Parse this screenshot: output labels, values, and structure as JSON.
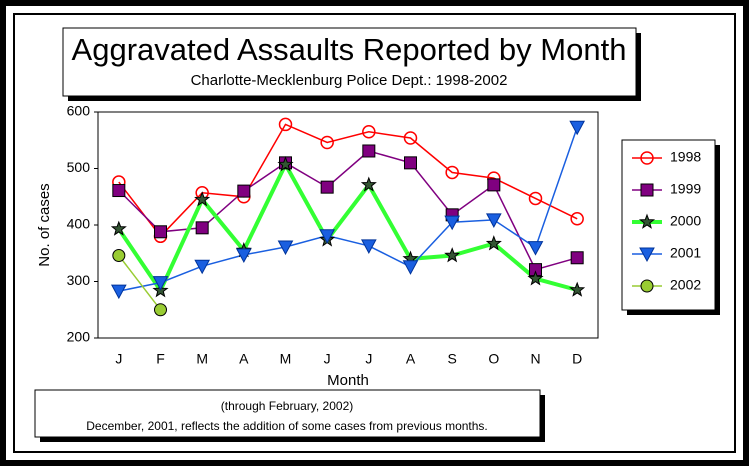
{
  "chart_data": {
    "type": "line",
    "title": "Aggravated Assaults Reported by Month",
    "subtitle": "Charlotte-Mecklenburg Police Dept.: 1998-2002",
    "x_label": "Month",
    "y_label": "No. of cases",
    "categories": [
      "J",
      "F",
      "M",
      "A",
      "M",
      "J",
      "J",
      "A",
      "S",
      "O",
      "N",
      "D"
    ],
    "series": [
      {
        "name": "1998",
        "color": "#ff0000",
        "marker": "circle-open",
        "values": [
          476,
          380,
          457,
          450,
          578,
          546,
          565,
          554,
          493,
          483,
          447,
          411
        ]
      },
      {
        "name": "1999",
        "color": "#800080",
        "marker": "square",
        "values": [
          461,
          388,
          395,
          460,
          510,
          467,
          531,
          510,
          418,
          471,
          321,
          342
        ]
      },
      {
        "name": "2000",
        "color": "#33ff33",
        "marker": "star",
        "values": [
          393,
          284,
          445,
          355,
          507,
          374,
          471,
          340,
          346,
          367,
          305,
          285
        ]
      },
      {
        "name": "2001",
        "color": "#1a5fe0",
        "marker": "triangle-down",
        "values": [
          283,
          298,
          327,
          347,
          361,
          381,
          363,
          326,
          405,
          409,
          360,
          573
        ]
      },
      {
        "name": "2002",
        "color": "#99cc33",
        "marker": "circle",
        "values": [
          346,
          250,
          null,
          null,
          null,
          null,
          null,
          null,
          null,
          null,
          null,
          null
        ]
      }
    ],
    "ylim": [
      200,
      600
    ],
    "yticks": [
      200,
      300,
      400,
      500,
      600
    ],
    "legend": "right",
    "notes": [
      "(through  February, 2002)",
      "December, 2001, reflects the addition of some cases from previous months."
    ]
  }
}
